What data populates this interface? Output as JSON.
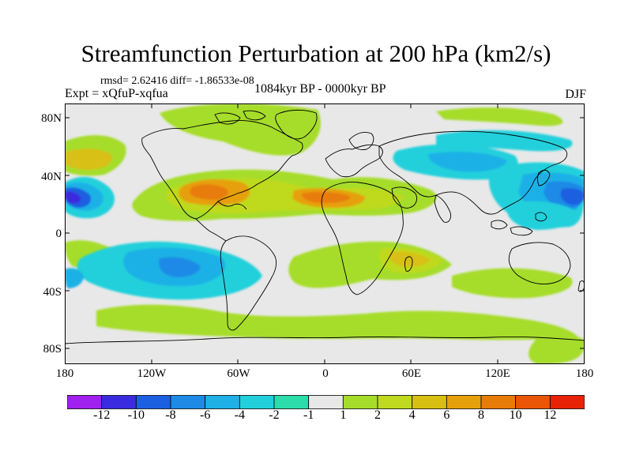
{
  "title": "Streamfunction Perturbation at 200 hPa (km2/s)",
  "rmsd_text": "rmsd= 2.62416 diff= -1.86533e-08",
  "experiment": "Expt = xQfuP-xqfua",
  "period": "1084kyr BP - 0000kyr BP",
  "season": "DJF",
  "lat_ticks": [
    "80N",
    "40N",
    "0",
    "40S",
    "80S"
  ],
  "lon_ticks": [
    "180",
    "120W",
    "60W",
    "0",
    "60E",
    "120E",
    "180"
  ],
  "colorbar": {
    "colors": [
      "#a020f0",
      "#3a2be0",
      "#1c5fe0",
      "#1e8ae6",
      "#1fb1e6",
      "#22d0dc",
      "#2cdcab",
      "#e8e8e8",
      "#a6dd2a",
      "#bfd91e",
      "#d8c012",
      "#e6a00c",
      "#e87c08",
      "#ea5506",
      "#e82204"
    ],
    "labels": [
      "-12",
      "-10",
      "-8",
      "-6",
      "-4",
      "-2",
      "-1",
      "1",
      "2",
      "4",
      "6",
      "8",
      "10",
      "12"
    ]
  },
  "field": {
    "background_color": "#e8e8e8",
    "coastline_color": "#000000"
  }
}
